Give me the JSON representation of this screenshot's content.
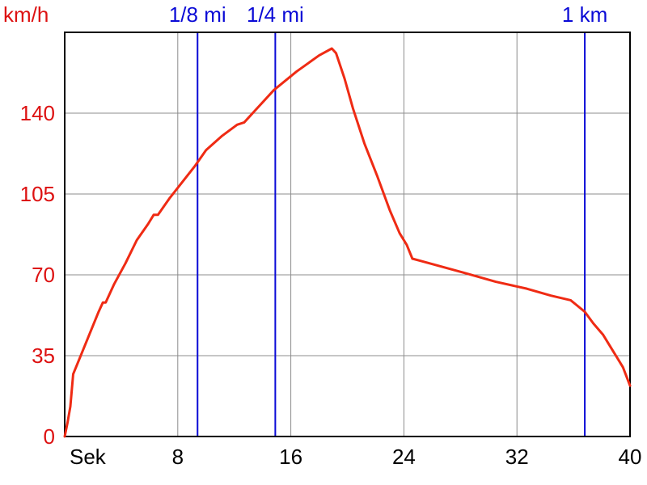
{
  "chart_data": {
    "type": "line",
    "title": "",
    "xlabel": "Sek",
    "ylabel": "km/h",
    "x_tick_labels": [
      "Sek",
      "8",
      "16",
      "24",
      "32",
      "40"
    ],
    "x_tick_values": [
      0,
      8,
      16,
      24,
      32,
      40
    ],
    "y_tick_labels": [
      "0",
      "35",
      "70",
      "105",
      "140"
    ],
    "y_tick_values": [
      0,
      35,
      70,
      105,
      140
    ],
    "xlim": [
      0,
      40
    ],
    "ylim": [
      0,
      175
    ],
    "grid": true,
    "legend": "none",
    "markers": [
      {
        "label": "1/8 mi",
        "x": 9.4
      },
      {
        "label": "1/4 mi",
        "x": 14.9
      },
      {
        "label": "1 km",
        "x": 36.8
      }
    ],
    "series": [
      {
        "color": "#ef2b14",
        "x": [
          0,
          0.2,
          0.4,
          0.6,
          0.8,
          1.2,
          1.8,
          2.4,
          2.7,
          2.9,
          3.5,
          4.3,
          5.1,
          5.9,
          6.3,
          6.6,
          7.4,
          8.3,
          9.2,
          10.0,
          11.1,
          12.2,
          12.7,
          13.6,
          14.8,
          16.4,
          18.0,
          18.9,
          19.2,
          19.8,
          20.4,
          21.2,
          22.1,
          23.0,
          23.7,
          24.2,
          24.6,
          25.2,
          26.4,
          28.2,
          30.5,
          32.7,
          34.4,
          35.8,
          36.2,
          36.8,
          37.4,
          38.1,
          38.8,
          39.5,
          40.0
        ],
        "y": [
          0,
          6,
          13,
          27,
          30,
          36,
          45,
          54,
          58,
          58,
          66,
          75,
          85,
          92,
          96,
          96,
          103,
          110,
          117,
          124,
          130,
          135,
          136,
          142,
          150,
          158,
          165,
          168,
          166,
          155,
          142,
          127,
          113,
          98,
          88,
          83,
          77,
          76,
          74,
          71,
          67,
          64,
          61,
          59,
          57,
          54,
          49,
          44,
          37,
          30,
          22
        ]
      }
    ]
  },
  "colors": {
    "axis_red": "#dd1111",
    "x_axis_label": "#000000",
    "marker_blue": "#0a0ad6",
    "grid_gray": "#8c8c8c",
    "speed_red": "#ef2b14"
  }
}
